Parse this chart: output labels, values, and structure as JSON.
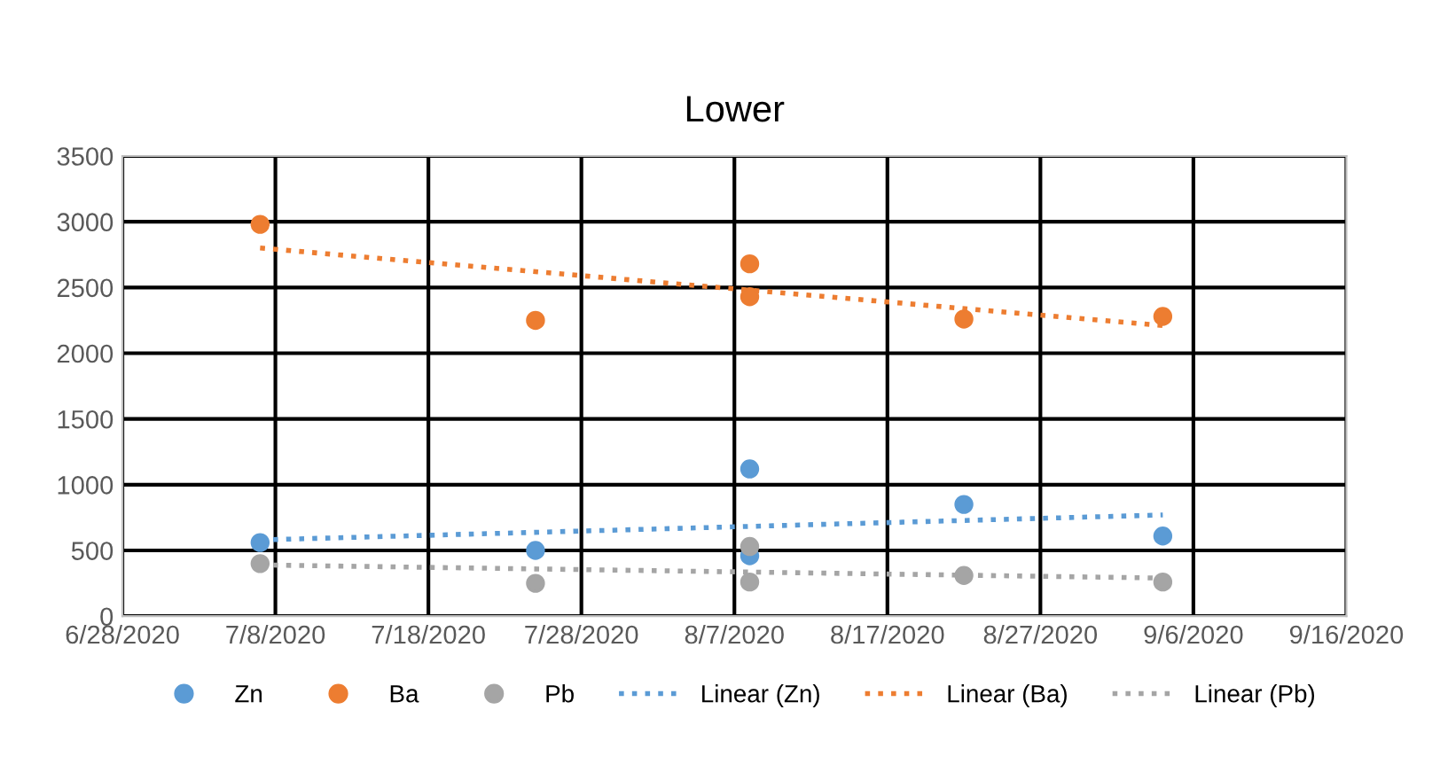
{
  "chart_data": {
    "type": "scatter",
    "title": "Lower",
    "x": [
      "2020-07-07",
      "2020-07-25",
      "2020-08-08",
      "2020-08-08",
      "2020-08-22",
      "2020-09-04"
    ],
    "series": [
      {
        "name": "Zn",
        "color": "#5b9bd5",
        "values": [
          560,
          500,
          1120,
          460,
          850,
          610
        ]
      },
      {
        "name": "Ba",
        "color": "#ed7d31",
        "values": [
          2980,
          2250,
          2680,
          2430,
          2260,
          2280
        ]
      },
      {
        "name": "Pb",
        "color": "#a5a5a5",
        "values": [
          400,
          250,
          530,
          260,
          310,
          260
        ]
      },
      {
        "name": "Linear (Zn)",
        "type": "line",
        "line_style": "dotted",
        "marker": "none",
        "color": "#5b9bd5",
        "x": [
          "2020-07-07",
          "2020-09-04"
        ],
        "values": [
          580,
          770
        ]
      },
      {
        "name": "Linear (Ba)",
        "type": "line",
        "line_style": "dotted",
        "marker": "none",
        "color": "#ed7d31",
        "x": [
          "2020-07-07",
          "2020-09-04"
        ],
        "values": [
          2800,
          2210
        ]
      },
      {
        "name": "Linear (Pb)",
        "type": "line",
        "line_style": "dotted",
        "marker": "none",
        "color": "#a5a5a5",
        "x": [
          "2020-07-07",
          "2020-09-04"
        ],
        "values": [
          390,
          290
        ]
      }
    ],
    "marker": "circle",
    "xlim": [
      "2020-06-28",
      "2020-09-16"
    ],
    "xticks": [
      {
        "value": "2020-06-28",
        "label": "6/28/2020"
      },
      {
        "value": "2020-07-08",
        "label": "7/8/2020"
      },
      {
        "value": "2020-07-18",
        "label": "7/18/2020"
      },
      {
        "value": "2020-07-28",
        "label": "7/28/2020"
      },
      {
        "value": "2020-08-07",
        "label": "8/7/2020"
      },
      {
        "value": "2020-08-17",
        "label": "8/17/2020"
      },
      {
        "value": "2020-08-27",
        "label": "8/27/2020"
      },
      {
        "value": "2020-09-06",
        "label": "9/6/2020"
      },
      {
        "value": "2020-09-16",
        "label": "9/16/2020"
      }
    ],
    "ylim": [
      0,
      3500
    ],
    "yticks": [
      0,
      500,
      1000,
      1500,
      2000,
      2500,
      3000,
      3500
    ],
    "grid": true,
    "legend": "bottom"
  }
}
